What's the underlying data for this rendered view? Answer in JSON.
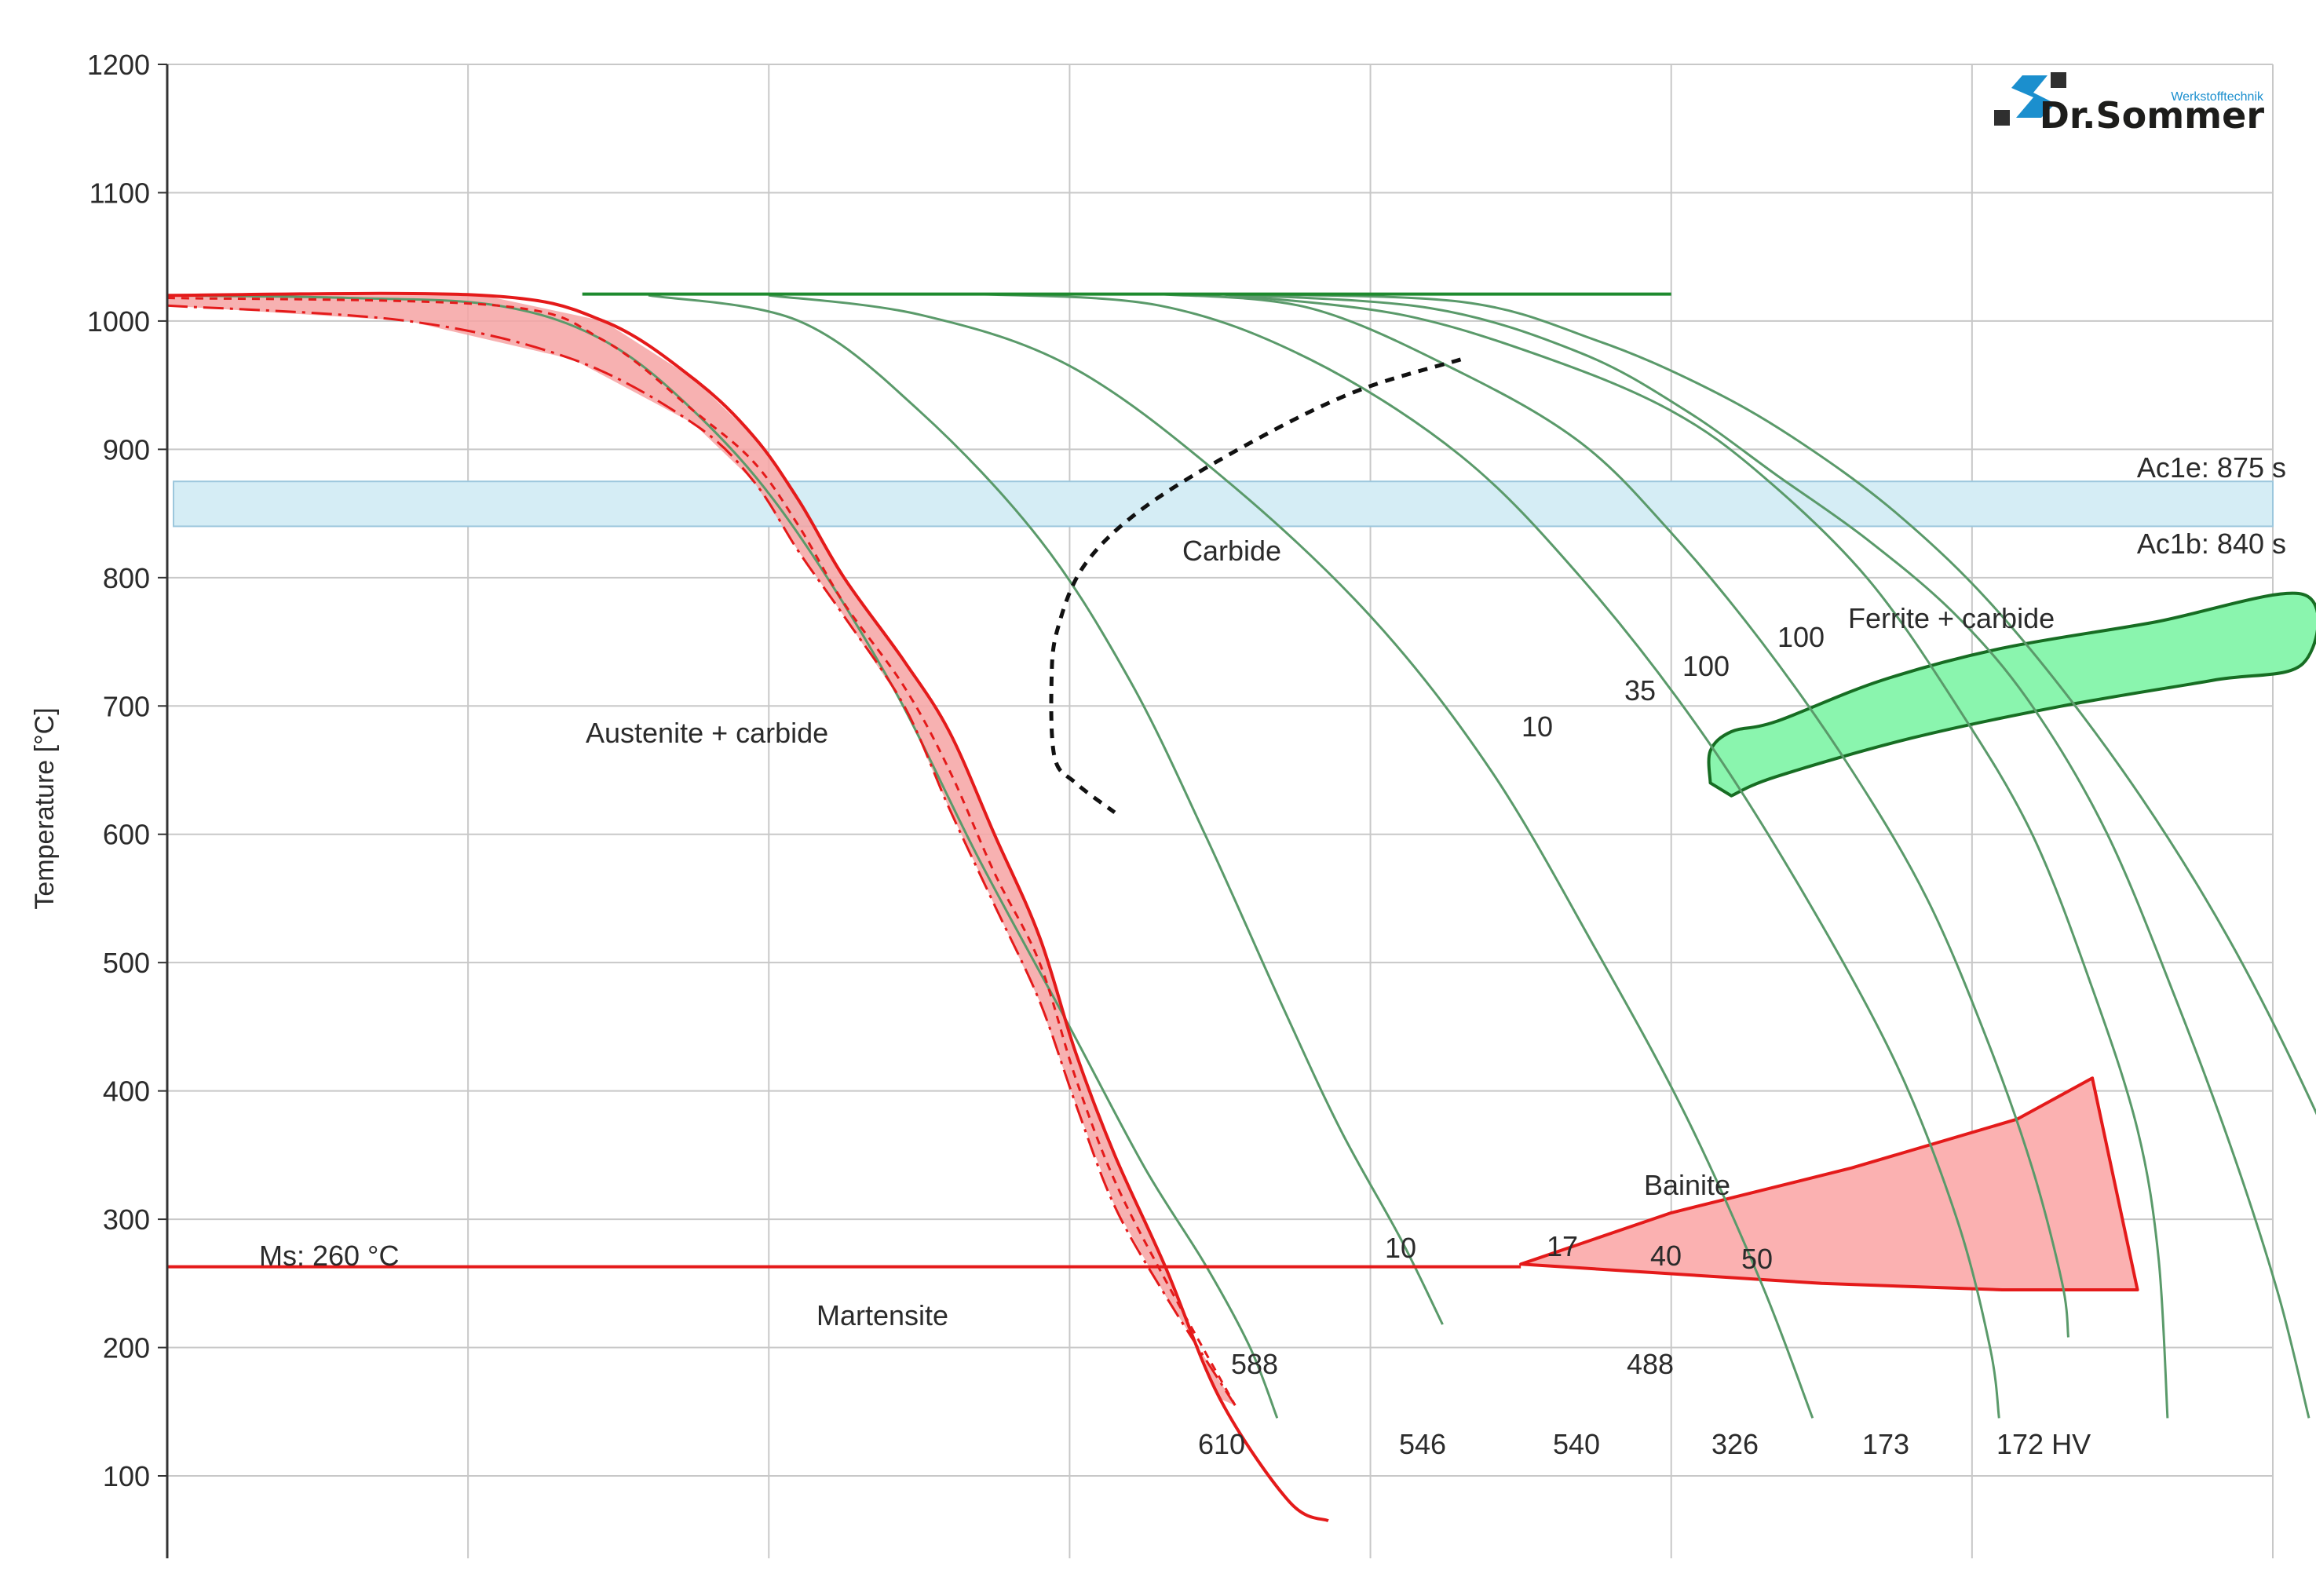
{
  "chart_data": {
    "type": "line",
    "title": "",
    "xlabel": "",
    "ylabel": "Temperature [°C]",
    "ylim": [
      40,
      1200
    ],
    "yticks": [
      100,
      200,
      300,
      400,
      500,
      600,
      700,
      800,
      900,
      1000,
      1100,
      1200
    ],
    "xlim": [
      0,
      7
    ],
    "xgrid": [
      0,
      1,
      2,
      3,
      4,
      5,
      6,
      7
    ],
    "grid": true,
    "colors": {
      "cooling_curve": "#5a9a6a",
      "austenitizing": "#1e8a2e",
      "martensite": "#e41a1a",
      "martensite_fill": "#f6a3a3",
      "bainite_fill": "#fbb1b1",
      "ferrite_fill": "#8af5ae",
      "ferrite_border": "#176d23",
      "ac1_band": "#d5edf5",
      "ac1_border": "#9cc7dd",
      "grid": "#c8c8c8",
      "axis": "#333333"
    },
    "ac1_band": {
      "ac1b": 840,
      "ac1e": 875
    },
    "ac1_labels": {
      "ac1e": "Ac1e: 875 s",
      "ac1b": "Ac1b: 840 s"
    },
    "ms_temperature": 263,
    "ms_label": "Ms: 260 °C",
    "austenitizing_temperature": 1020,
    "cooling_curves": [
      {
        "hardness": "610",
        "points": [
          [
            0,
            1020
          ],
          [
            0.6,
            1018
          ],
          [
            1.1,
            1012
          ],
          [
            1.45,
            985
          ],
          [
            1.75,
            930
          ],
          [
            2.05,
            850
          ],
          [
            2.4,
            720
          ],
          [
            2.7,
            580
          ],
          [
            3.0,
            450
          ],
          [
            3.25,
            340
          ],
          [
            3.45,
            265
          ],
          [
            3.6,
            200
          ],
          [
            3.69,
            145
          ]
        ]
      },
      {
        "hardness": "588",
        "points": [
          [
            1.6,
            1020
          ],
          [
            2.1,
            1000
          ],
          [
            2.5,
            930
          ],
          [
            2.9,
            830
          ],
          [
            3.2,
            720
          ],
          [
            3.45,
            600
          ],
          [
            3.7,
            470
          ],
          [
            3.9,
            370
          ],
          [
            4.1,
            285
          ],
          [
            4.24,
            218
          ]
        ]
      },
      {
        "hardness": "546",
        "points": [
          [
            2.0,
            1020
          ],
          [
            2.5,
            1005
          ],
          [
            3.0,
            965
          ],
          [
            3.5,
            880
          ],
          [
            4.0,
            770
          ],
          [
            4.4,
            650
          ],
          [
            4.75,
            510
          ],
          [
            5.05,
            380
          ],
          [
            5.3,
            250
          ],
          [
            5.47,
            145
          ]
        ]
      },
      {
        "hardness": "540",
        "points": [
          [
            2.7,
            1021
          ],
          [
            3.3,
            1012
          ],
          [
            3.8,
            970
          ],
          [
            4.3,
            895
          ],
          [
            4.7,
            800
          ],
          [
            5.1,
            680
          ],
          [
            5.45,
            550
          ],
          [
            5.75,
            420
          ],
          [
            5.95,
            300
          ],
          [
            6.06,
            200
          ],
          [
            6.09,
            145
          ]
        ]
      },
      {
        "hardness": "488",
        "points": [
          [
            3.3,
            1021
          ],
          [
            3.8,
            1010
          ],
          [
            4.3,
            960
          ],
          [
            4.7,
            905
          ],
          [
            5.0,
            835
          ],
          [
            5.3,
            750
          ],
          [
            5.6,
            650
          ],
          [
            5.85,
            550
          ],
          [
            6.05,
            440
          ],
          [
            6.2,
            340
          ],
          [
            6.3,
            250
          ],
          [
            6.32,
            208
          ]
        ]
      },
      {
        "hardness": "326",
        "points": [
          [
            3.5,
            1021
          ],
          [
            4.1,
            1005
          ],
          [
            4.6,
            970
          ],
          [
            5.0,
            930
          ],
          [
            5.3,
            880
          ],
          [
            5.65,
            800
          ],
          [
            5.95,
            700
          ],
          [
            6.2,
            600
          ],
          [
            6.4,
            480
          ],
          [
            6.55,
            370
          ],
          [
            6.62,
            270
          ],
          [
            6.65,
            145
          ]
        ]
      },
      {
        "hardness": "173",
        "points": [
          [
            3.5,
            1021
          ],
          [
            4.2,
            1010
          ],
          [
            4.7,
            975
          ],
          [
            5.05,
            930
          ],
          [
            5.35,
            880
          ],
          [
            5.65,
            830
          ],
          [
            5.95,
            770
          ],
          [
            6.2,
            700
          ],
          [
            6.45,
            600
          ],
          [
            6.68,
            470
          ],
          [
            6.87,
            350
          ],
          [
            7.02,
            240
          ],
          [
            7.12,
            145
          ]
        ]
      },
      {
        "hardness": "172 HV",
        "points": [
          [
            3.5,
            1021
          ],
          [
            4.3,
            1015
          ],
          [
            4.75,
            985
          ],
          [
            5.1,
            950
          ],
          [
            5.4,
            910
          ],
          [
            5.75,
            850
          ],
          [
            6.1,
            770
          ],
          [
            6.5,
            650
          ],
          [
            6.85,
            520
          ],
          [
            7.15,
            380
          ],
          [
            7.4,
            240
          ],
          [
            7.55,
            145
          ]
        ]
      }
    ],
    "austenitizing_line": [
      [
        1.38,
        1021
      ],
      [
        5.0,
        1021
      ]
    ],
    "martensite_region": {
      "upper_points": [
        [
          0,
          1020
        ],
        [
          1.05,
          1020
        ],
        [
          1.45,
          1000
        ],
        [
          1.75,
          955
        ],
        [
          1.95,
          910
        ],
        [
          2.1,
          860
        ],
        [
          2.25,
          800
        ],
        [
          2.45,
          735
        ],
        [
          2.6,
          680
        ],
        [
          2.75,
          600
        ],
        [
          2.9,
          520
        ],
        [
          3.02,
          430
        ],
        [
          3.15,
          350
        ],
        [
          3.32,
          262
        ],
        [
          3.5,
          160
        ],
        [
          3.73,
          80
        ],
        [
          3.86,
          65
        ]
      ],
      "lower_points": [
        [
          0,
          1012
        ],
        [
          0.8,
          1000
        ],
        [
          1.35,
          970
        ],
        [
          1.75,
          920
        ],
        [
          1.95,
          875
        ],
        [
          2.1,
          820
        ],
        [
          2.25,
          770
        ],
        [
          2.45,
          700
        ],
        [
          2.6,
          620
        ],
        [
          2.75,
          545
        ],
        [
          2.9,
          470
        ],
        [
          3.02,
          390
        ],
        [
          3.15,
          310
        ],
        [
          3.32,
          240
        ],
        [
          3.55,
          155
        ]
      ],
      "dashed_points": [
        [
          0,
          1018
        ],
        [
          1.1,
          1012
        ],
        [
          1.45,
          985
        ],
        [
          1.75,
          930
        ],
        [
          1.95,
          890
        ],
        [
          2.1,
          840
        ],
        [
          2.25,
          780
        ],
        [
          2.45,
          715
        ],
        [
          2.6,
          650
        ],
        [
          2.75,
          570
        ],
        [
          2.9,
          500
        ],
        [
          3.02,
          410
        ],
        [
          3.15,
          330
        ],
        [
          3.32,
          252
        ],
        [
          3.55,
          155
        ]
      ]
    },
    "carbide_boundary": [
      [
        4.3,
        970
      ],
      [
        3.95,
        945
      ],
      [
        3.6,
        905
      ],
      [
        3.25,
        855
      ],
      [
        3.05,
        810
      ],
      [
        2.96,
        760
      ],
      [
        2.94,
        720
      ],
      [
        2.95,
        660
      ],
      [
        3.02,
        640
      ],
      [
        3.15,
        617
      ]
    ],
    "ferrite_region": {
      "label": "Ferrite + carbide",
      "points": [
        [
          5.2,
          630
        ],
        [
          5.35,
          645
        ],
        [
          5.8,
          675
        ],
        [
          6.3,
          700
        ],
        [
          6.8,
          720
        ],
        [
          7.1,
          733
        ],
        [
          7.1,
          787
        ],
        [
          6.6,
          765
        ],
        [
          6.1,
          745
        ],
        [
          5.7,
          720
        ],
        [
          5.35,
          688
        ],
        [
          5.2,
          680
        ],
        [
          5.13,
          665
        ],
        [
          5.13,
          640
        ]
      ],
      "values": [
        "10",
        "35",
        "100",
        "100"
      ]
    },
    "bainite_region": {
      "label": "Bainite",
      "points": [
        [
          4.5,
          265
        ],
        [
          5.5,
          250
        ],
        [
          6.1,
          245
        ],
        [
          6.55,
          245
        ],
        [
          6.4,
          410
        ],
        [
          6.15,
          378
        ],
        [
          5.6,
          340
        ],
        [
          5.0,
          305
        ],
        [
          4.5,
          265
        ]
      ],
      "values": [
        "10",
        "17",
        "40",
        "50"
      ]
    },
    "phase_labels": {
      "carbide": "Carbide",
      "austenite_carbide": "Austenite + carbide",
      "martensite": "Martensite"
    },
    "hardness_labels": [
      "588",
      "610",
      "546",
      "540",
      "488",
      "326",
      "173",
      "172 HV"
    ]
  },
  "logo": {
    "small_text": "Werkstofftechnik",
    "name": "Dr.Sommer",
    "brand_blue": "#1b8fce",
    "brand_dark": "#2f2f2f"
  }
}
